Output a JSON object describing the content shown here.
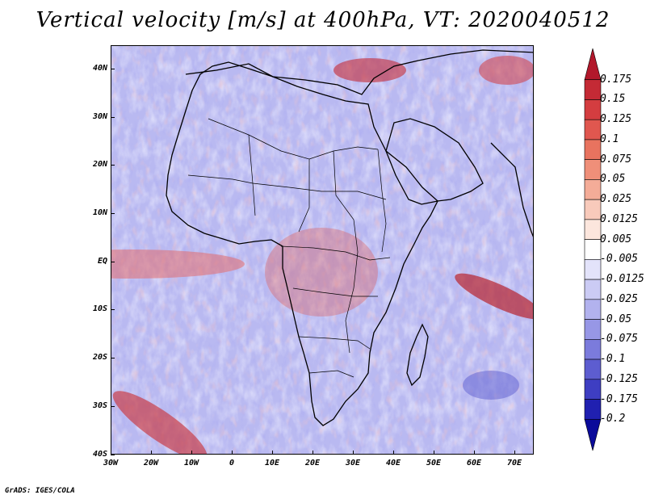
{
  "title": "Vertical velocity [m/s] at 400hPa, VT: 2020040512",
  "footer": "GrADS: IGES/COLA",
  "map": {
    "region": "Africa and surrounding oceans",
    "lat_labels": [
      "40N",
      "30N",
      "20N",
      "10N",
      "EQ",
      "10S",
      "20S",
      "30S",
      "40S"
    ],
    "lon_labels": [
      "30W",
      "20W",
      "10W",
      "0",
      "10E",
      "20E",
      "30E",
      "40E",
      "50E",
      "60E",
      "70E"
    ]
  },
  "colorbar": {
    "labels": [
      "0.175",
      "0.15",
      "0.125",
      "0.1",
      "0.075",
      "0.05",
      "0.025",
      "0.0125",
      "0.005",
      "-0.005",
      "-0.0125",
      "-0.025",
      "-0.05",
      "-0.075",
      "-0.1",
      "-0.125",
      "-0.175",
      "-0.2"
    ],
    "colors": [
      "#b2182b",
      "#c42a35",
      "#d43d40",
      "#e0574f",
      "#e8735f",
      "#ef8f79",
      "#f4ac98",
      "#f8cabb",
      "#fce6dd",
      "#ffffff",
      "#e3e3fa",
      "#cbcbf4",
      "#b2b2ee",
      "#9797e6",
      "#7b7bdc",
      "#5d5dd0",
      "#3e3ec2",
      "#2020b0",
      "#0a0a9a"
    ]
  }
}
